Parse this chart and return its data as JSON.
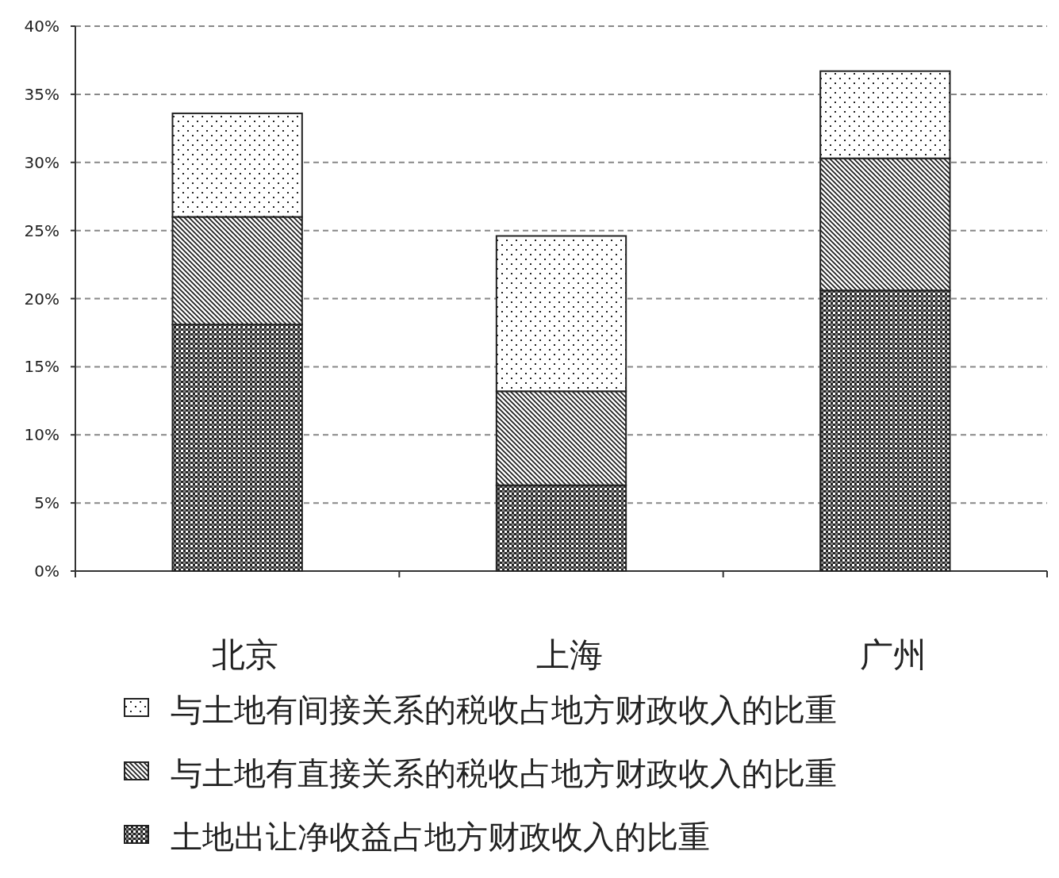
{
  "chart_data": {
    "type": "bar",
    "stacked": true,
    "categories": [
      "北京",
      "上海",
      "广州"
    ],
    "series": [
      {
        "name": "土地出让净收益占地方财政收入的比重",
        "color": "#222222",
        "values": [
          18.1,
          6.3,
          20.6
        ]
      },
      {
        "name": "与土地有直接关系的税收占地方财政收入的比重",
        "color": "#222222",
        "values": [
          7.9,
          6.9,
          9.7
        ]
      },
      {
        "name": "与土地有间接关系的税收占地方财政收入的比重",
        "color": "#222222",
        "values": [
          7.6,
          11.4,
          6.4
        ]
      }
    ],
    "ylim": [
      0,
      40
    ],
    "yticks": [
      {
        "value": 0,
        "label": "0%"
      },
      {
        "value": 5,
        "label": "5%"
      },
      {
        "value": 10,
        "label": "10%"
      },
      {
        "value": 15,
        "label": "15%"
      },
      {
        "value": 20,
        "label": "20%"
      },
      {
        "value": 25,
        "label": "25%"
      },
      {
        "value": 30,
        "label": "30%"
      },
      {
        "value": 35,
        "label": "35%"
      },
      {
        "value": 40,
        "label": "40%"
      }
    ],
    "grid": "y",
    "legend": "bottom"
  }
}
